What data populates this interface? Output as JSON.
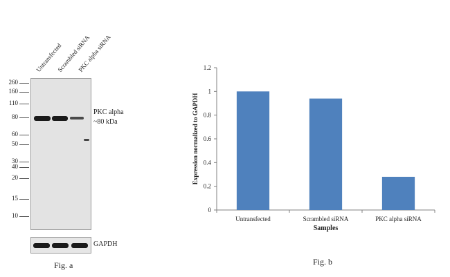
{
  "fig_a": {
    "caption": "Fig. a",
    "lanes": [
      "Untransfected",
      "Scrambled siRNA",
      "PKC alpha siRNA"
    ],
    "markers": [
      "260",
      "160",
      "110",
      "80",
      "60",
      "50",
      "40",
      "30",
      "20",
      "15",
      "10"
    ],
    "target_label": "PKC alpha",
    "target_size": "~80 kDa",
    "loading_control": "GAPDH"
  },
  "fig_b": {
    "caption": "Fig. b"
  },
  "chart_data": {
    "type": "bar",
    "categories": [
      "Untransfected",
      "Scrambled siRNA",
      "PKC alpha siRNA"
    ],
    "values": [
      1.0,
      0.94,
      0.28
    ],
    "xlabel": "Samples",
    "ylabel": "Expression normalized to GAPDH",
    "ylim": [
      0,
      1.2
    ],
    "yticks": [
      "0",
      "0.2",
      "0.4",
      "0.6",
      "0.8",
      "1",
      "1.2"
    ],
    "bar_color": "#4f81bd",
    "grid": false,
    "legend": "none"
  }
}
